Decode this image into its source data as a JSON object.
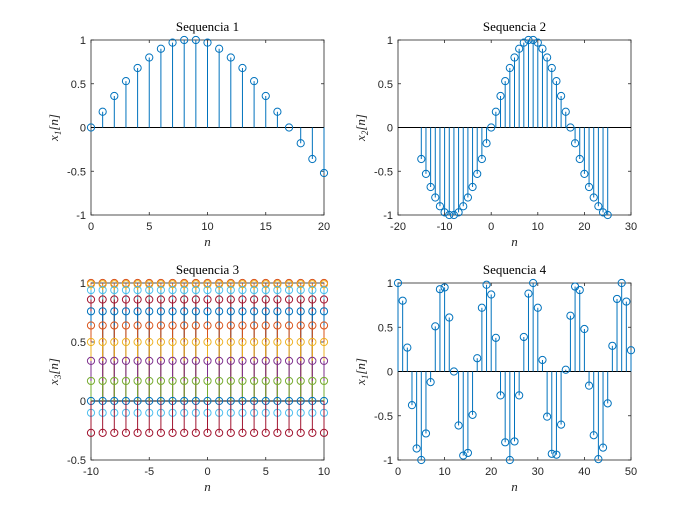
{
  "chart_data": [
    {
      "type": "stem",
      "title": "Sequencia 1",
      "xlabel": "n",
      "ylabel": "x_1[n]",
      "xlim": [
        0,
        20
      ],
      "ylim": [
        -1,
        1
      ],
      "xticks": [
        0,
        5,
        10,
        15,
        20
      ],
      "yticks": [
        -1,
        -0.5,
        0,
        0.5,
        1
      ],
      "x": [
        0,
        1,
        2,
        3,
        4,
        5,
        6,
        7,
        8,
        9,
        10,
        11,
        12,
        13,
        14,
        15,
        16,
        17,
        18,
        19,
        20
      ],
      "series": [
        {
          "color": "#0072BD",
          "values": [
            0,
            0.18,
            0.36,
            0.53,
            0.68,
            0.8,
            0.9,
            0.97,
            1,
            1,
            0.97,
            0.9,
            0.8,
            0.68,
            0.53,
            0.36,
            0.18,
            0,
            -0.18,
            -0.36,
            -0.52
          ]
        }
      ]
    },
    {
      "type": "stem",
      "title": "Sequencia 2",
      "xlabel": "n",
      "ylabel": "x_2[n]",
      "xlim": [
        -20,
        30
      ],
      "ylim": [
        -1,
        1
      ],
      "xticks": [
        -20,
        -10,
        0,
        10,
        20,
        30
      ],
      "yticks": [
        -1,
        -0.5,
        0,
        0.5,
        1
      ],
      "x": [
        -15,
        -14,
        -13,
        -12,
        -11,
        -10,
        -9,
        -8,
        -7,
        -6,
        -5,
        -4,
        -3,
        -2,
        -1,
        0,
        1,
        2,
        3,
        4,
        5,
        6,
        7,
        8,
        9,
        10,
        11,
        12,
        13,
        14,
        15,
        16,
        17,
        18,
        19,
        20,
        21,
        22,
        23,
        24,
        25
      ],
      "series": [
        {
          "color": "#0072BD",
          "values": [
            -0.36,
            -0.53,
            -0.68,
            -0.8,
            -0.9,
            -0.97,
            -1,
            -1,
            -0.97,
            -0.9,
            -0.8,
            -0.68,
            -0.53,
            -0.36,
            -0.18,
            0,
            0.18,
            0.36,
            0.53,
            0.68,
            0.8,
            0.9,
            0.97,
            1,
            1,
            0.97,
            0.9,
            0.8,
            0.68,
            0.53,
            0.36,
            0.18,
            0,
            -0.18,
            -0.36,
            -0.53,
            -0.68,
            -0.8,
            -0.9,
            -0.97,
            -1
          ]
        }
      ]
    },
    {
      "type": "stem",
      "title": "Sequencia 3",
      "xlabel": "n",
      "ylabel": "x_3[n]",
      "xlim": [
        -10,
        10
      ],
      "ylim": [
        -0.5,
        1
      ],
      "xticks": [
        -10,
        -5,
        0,
        5,
        10
      ],
      "yticks": [
        -0.5,
        0,
        0.5,
        1
      ],
      "x": [
        -10,
        -9,
        -8,
        -7,
        -6,
        -5,
        -4,
        -3,
        -2,
        -1,
        0,
        1,
        2,
        3,
        4,
        5,
        6,
        7,
        8,
        9,
        10
      ],
      "levels": [
        {
          "value": 1.0,
          "color": "#D95319"
        },
        {
          "value": 0.99,
          "color": "#EDB120"
        },
        {
          "value": 0.94,
          "color": "#4DBEEE"
        },
        {
          "value": 0.86,
          "color": "#A2142F"
        },
        {
          "value": 0.76,
          "color": "#0072BD"
        },
        {
          "value": 0.64,
          "color": "#D95319"
        },
        {
          "value": 0.5,
          "color": "#EDB120"
        },
        {
          "value": 0.34,
          "color": "#7E2F8E"
        },
        {
          "value": 0.17,
          "color": "#77AC30"
        },
        {
          "value": 0.0,
          "color": "#0072BD"
        },
        {
          "value": -0.1,
          "color": "#4DBEEE"
        },
        {
          "value": -0.27,
          "color": "#A2142F"
        }
      ]
    },
    {
      "type": "stem",
      "title": "Sequencia 4",
      "xlabel": "n",
      "ylabel": "x_1[n]",
      "xlim": [
        0,
        50
      ],
      "ylim": [
        -1,
        1
      ],
      "xticks": [
        0,
        10,
        20,
        30,
        40,
        50
      ],
      "yticks": [
        -1,
        -0.5,
        0,
        0.5,
        1
      ],
      "x": [
        0,
        1,
        2,
        3,
        4,
        5,
        6,
        7,
        8,
        9,
        10,
        11,
        12,
        13,
        14,
        15,
        16,
        17,
        18,
        19,
        20,
        21,
        22,
        23,
        24,
        25,
        26,
        27,
        28,
        29,
        30,
        31,
        32,
        33,
        34,
        35,
        36,
        37,
        38,
        39,
        40,
        41,
        42,
        43,
        44,
        45,
        46,
        47,
        48,
        49,
        50
      ],
      "series": [
        {
          "color": "#0072BD",
          "values": [
            1,
            0.8,
            0.27,
            -0.38,
            -0.87,
            -1,
            -0.7,
            -0.12,
            0.51,
            0.93,
            0.95,
            0.61,
            0.0,
            -0.61,
            -0.95,
            -0.92,
            -0.49,
            0.15,
            0.72,
            0.98,
            0.87,
            0.38,
            -0.27,
            -0.8,
            -1,
            -0.79,
            -0.27,
            0.39,
            0.88,
            1,
            0.72,
            0.13,
            -0.51,
            -0.93,
            -0.94,
            -0.6,
            0.02,
            0.63,
            0.96,
            0.92,
            0.48,
            -0.16,
            -0.72,
            -0.99,
            -0.86,
            -0.36,
            0.29,
            0.82,
            1,
            0.79,
            0.24
          ]
        }
      ]
    }
  ]
}
